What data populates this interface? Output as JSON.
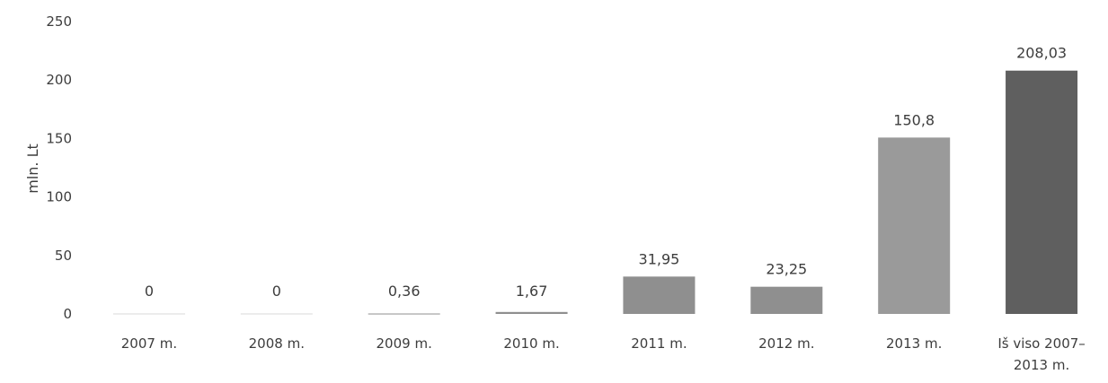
{
  "chart_data": {
    "type": "bar",
    "title": "",
    "xlabel": "",
    "ylabel": "mln. Lt",
    "ylim": [
      0,
      250
    ],
    "yticks": [
      "0",
      "50",
      "100",
      "150",
      "200",
      "250"
    ],
    "grid": false,
    "legend": "none",
    "categories": [
      [
        "2007 m."
      ],
      [
        "2008 m."
      ],
      [
        "2009 m."
      ],
      [
        "2010 m."
      ],
      [
        "2011 m."
      ],
      [
        "2012 m."
      ],
      [
        "2013 m."
      ],
      [
        "Iš viso 2007–",
        "2013 m."
      ]
    ],
    "values": [
      0,
      0,
      0.36,
      1.67,
      31.95,
      23.25,
      150.8,
      208.03
    ],
    "value_labels": [
      "0",
      "0",
      "0,36",
      "1,67",
      "31,95",
      "23,25",
      "150,8",
      "208,03"
    ],
    "colors": {
      "bar": "#8f8f8f",
      "bar_total": "#5f5f5f",
      "bar_2013": "#9a9a9a"
    }
  }
}
